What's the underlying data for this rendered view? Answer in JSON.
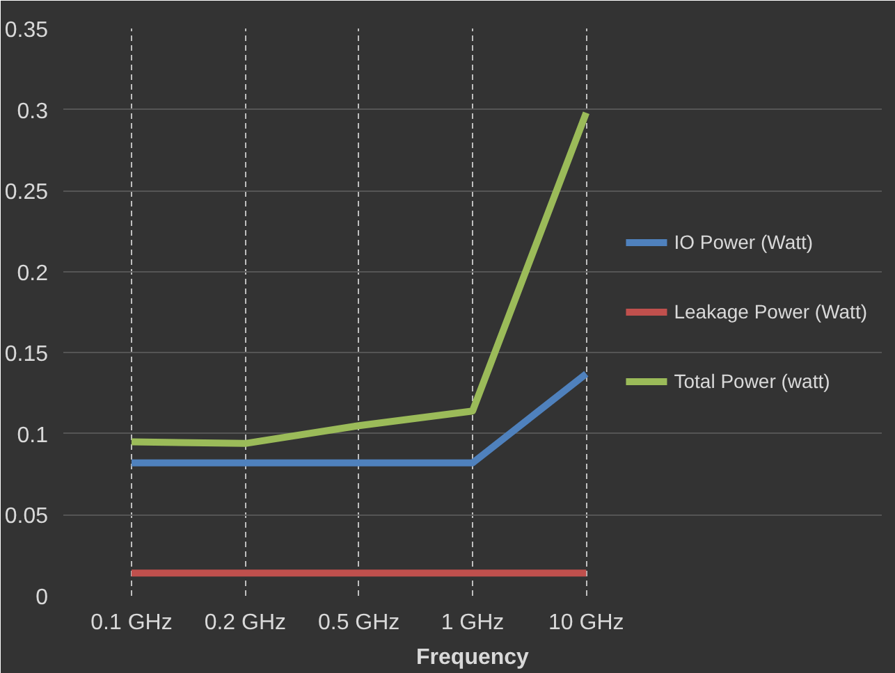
{
  "chart_data": {
    "type": "line",
    "xlabel": "Frequency",
    "categories": [
      "0.1 GHz",
      "0.2 GHz",
      "0.5 GHz",
      "1 GHz",
      "10 GHz"
    ],
    "series": [
      {
        "name": "IO Power (Watt)",
        "color": "#4f81bd",
        "values": [
          0.082,
          0.082,
          0.082,
          0.082,
          0.137
        ]
      },
      {
        "name": "Leakage Power (Watt)",
        "color": "#c0504d",
        "values": [
          0.014,
          0.014,
          0.014,
          0.014,
          0.014
        ]
      },
      {
        "name": "Total Power (watt)",
        "color": "#9bbb59",
        "values": [
          0.095,
          0.094,
          0.105,
          0.114,
          0.298
        ]
      }
    ],
    "ylim": [
      0,
      0.35
    ],
    "yticks": [
      0,
      0.05,
      0.1,
      0.15,
      0.2,
      0.25,
      0.3,
      0.35
    ],
    "grid": true,
    "legend": "right",
    "marker": "none",
    "line_style": "solid"
  }
}
